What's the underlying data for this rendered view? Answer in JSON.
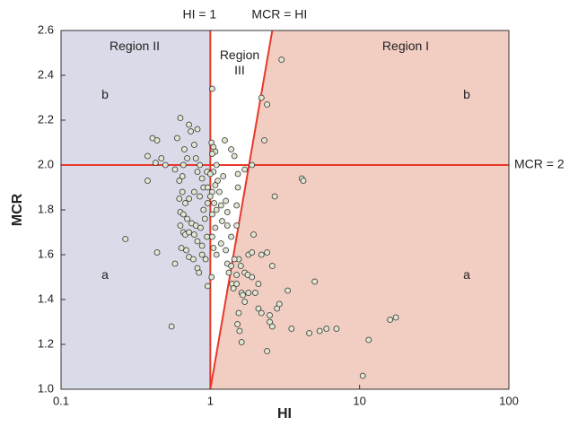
{
  "chart_data": {
    "type": "scatter",
    "x_label": "HI",
    "y_label": "MCR",
    "xscale": "log",
    "xlim": [
      0.1,
      100
    ],
    "xticks": [
      0.1,
      1,
      10,
      100
    ],
    "ylim": [
      1.0,
      2.6
    ],
    "yticks": [
      {
        "value": 1.0,
        "label": "1.0"
      },
      1.2,
      1.4,
      1.6,
      1.8,
      {
        "value": 2.0,
        "label": "2.0"
      },
      2.2,
      2.4,
      2.6
    ],
    "grid": false,
    "region_colors": {
      "left": "#d9dbe8",
      "right": "#f2cdc2"
    },
    "line_color": "#e8392a",
    "marker_color": "#e0e6d2",
    "vline": {
      "value": 1,
      "label": "HI = 1"
    },
    "hline": {
      "value": 2,
      "label": "MCR = 2"
    },
    "diagonal_label": "MCR = HI",
    "annotations": [
      "Region II",
      "Region III",
      "Region I",
      "b",
      "b",
      "a",
      "a"
    ],
    "x": [
      0.27,
      0.38,
      0.38,
      0.41,
      0.44,
      0.43,
      0.44,
      0.47,
      0.5,
      0.55,
      0.63,
      0.6,
      0.58,
      0.62,
      0.65,
      0.67,
      0.66,
      0.7,
      0.72,
      0.74,
      0.78,
      0.82,
      0.8,
      0.82,
      0.85,
      0.88,
      0.62,
      0.65,
      0.68,
      0.72,
      0.78,
      0.85,
      0.9,
      0.63,
      0.66,
      0.7,
      0.75,
      0.8,
      0.86,
      0.63,
      0.66,
      0.68,
      0.72,
      0.78,
      0.82,
      0.88,
      0.69,
      0.72,
      0.77,
      0.82,
      0.84,
      0.88,
      0.93,
      0.96,
      0.9,
      0.92,
      0.95,
      0.96,
      0.95,
      0.96,
      0.64,
      0.58,
      1.03,
      1.02,
      1.05,
      1.08,
      1.03,
      1.1,
      1.05,
      1.0,
      1.12,
      1.08,
      1.03,
      1.15,
      1.22,
      1.25,
      1.38,
      1.45,
      1.53,
      1.7,
      1.0,
      1.06,
      1.03,
      1.1,
      1.18,
      1.27,
      1.3,
      1.2,
      1.08,
      1.3,
      1.5,
      1.53,
      1.5,
      1.03,
      1.05,
      1.1,
      1.18,
      1.27,
      1.38,
      1.3,
      1.33,
      1.38,
      1.02,
      1.4,
      2.2,
      2.4,
      3.0,
      1.9,
      2.3,
      2.7,
      4.1,
      4.2,
      1.95,
      1.8,
      1.9,
      2.2,
      2.4,
      1.55,
      1.6,
      1.7,
      1.78,
      1.45,
      1.5,
      1.43,
      1.5,
      1.62,
      1.65,
      1.8,
      2.0,
      2.1,
      1.9,
      2.6,
      3.3,
      5.0,
      1.55,
      1.57,
      1.62,
      1.7,
      2.1,
      2.2,
      2.5,
      2.5,
      2.8,
      2.9,
      2.6,
      3.5,
      4.6,
      5.4,
      6.0,
      7.0,
      11.5,
      10.5,
      16,
      17.5,
      2.4,
      1.52
    ],
    "values": [
      1.67,
      1.93,
      2.04,
      2.12,
      2.11,
      2.01,
      1.61,
      2.03,
      2.0,
      1.28,
      2.21,
      2.12,
      1.98,
      1.93,
      1.95,
      2.07,
      2.0,
      2.03,
      2.18,
      2.15,
      2.09,
      2.16,
      2.03,
      1.97,
      2.0,
      1.94,
      1.85,
      1.88,
      1.83,
      1.85,
      1.88,
      1.86,
      1.9,
      1.79,
      1.78,
      1.76,
      1.74,
      1.73,
      1.72,
      1.73,
      1.7,
      1.69,
      1.7,
      1.69,
      1.66,
      1.64,
      1.62,
      1.59,
      1.58,
      1.54,
      1.52,
      1.6,
      1.58,
      1.46,
      1.8,
      1.76,
      1.68,
      1.83,
      1.97,
      1.9,
      1.63,
      1.56,
      2.34,
      2.1,
      2.08,
      2.06,
      2.05,
      2.0,
      1.97,
      1.96,
      1.93,
      1.91,
      1.88,
      1.88,
      1.95,
      2.11,
      2.07,
      2.04,
      1.96,
      1.98,
      1.86,
      1.83,
      1.78,
      1.8,
      1.82,
      1.84,
      1.79,
      1.75,
      1.72,
      1.73,
      1.73,
      1.9,
      1.82,
      1.68,
      1.63,
      1.6,
      1.65,
      1.62,
      1.68,
      1.56,
      1.52,
      1.55,
      1.5,
      1.47,
      2.3,
      2.27,
      2.47,
      2.0,
      2.11,
      1.86,
      1.94,
      1.93,
      1.69,
      1.6,
      1.61,
      1.6,
      1.61,
      1.58,
      1.55,
      1.52,
      1.51,
      1.58,
      1.51,
      1.45,
      1.47,
      1.43,
      1.42,
      1.43,
      1.43,
      1.47,
      1.5,
      1.55,
      1.44,
      1.48,
      1.34,
      1.26,
      1.21,
      1.39,
      1.36,
      1.34,
      1.33,
      1.3,
      1.36,
      1.38,
      1.28,
      1.27,
      1.25,
      1.26,
      1.27,
      1.27,
      1.22,
      1.06,
      1.31,
      1.32,
      1.17,
      1.29
    ]
  }
}
